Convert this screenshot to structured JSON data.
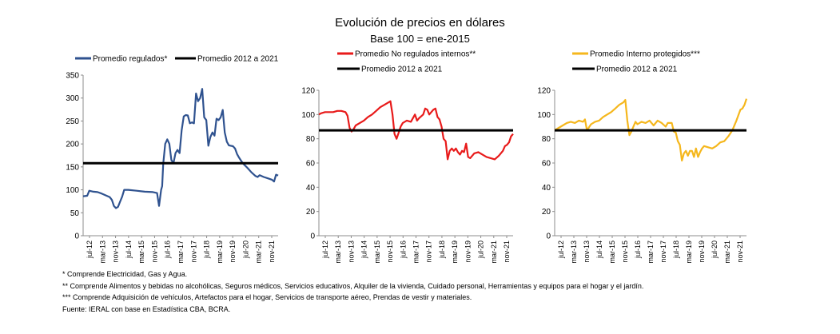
{
  "title": "Evolución de precios en dólares",
  "subtitle": "Base 100 = ene-2015",
  "colors": {
    "regulados": "#2f528f",
    "no_regulados": "#e81a1a",
    "protegidos": "#f5b71d",
    "promedio": "#000000"
  },
  "x_tick_labels": [
    "jul-12",
    "mar-13",
    "nov-13",
    "jul-14",
    "mar-15",
    "nov-15",
    "jul-16",
    "mar-17",
    "nov-17",
    "jul-18",
    "mar-19",
    "nov-19",
    "jul-20",
    "mar-21",
    "nov-21"
  ],
  "chart_data": [
    {
      "type": "line",
      "legend": [
        "Promedio regulados*",
        "Promedio 2012 a 2021"
      ],
      "yticks": [
        "350",
        "300",
        "250",
        "200",
        "150",
        "100",
        "50",
        "0"
      ],
      "ylim": [
        0,
        350
      ],
      "x": [
        "jul-12",
        "mar-13",
        "nov-13",
        "jul-14",
        "mar-15",
        "nov-15",
        "jul-16",
        "mar-17",
        "nov-17",
        "jul-18",
        "mar-19",
        "nov-19",
        "jul-20",
        "mar-21",
        "nov-21"
      ],
      "series": [
        {
          "name": "Promedio regulados*",
          "color": "#2f528f",
          "points": [
            [
              0,
              86
            ],
            [
              2,
              87
            ],
            [
              3,
              98
            ],
            [
              5,
              96
            ],
            [
              7,
              95
            ],
            [
              9,
              92
            ],
            [
              11,
              88
            ],
            [
              13,
              84
            ],
            [
              14,
              78
            ],
            [
              15,
              65
            ],
            [
              16,
              60
            ],
            [
              17,
              63
            ],
            [
              18,
              74
            ],
            [
              19,
              85
            ],
            [
              20,
              100
            ],
            [
              22,
              100
            ],
            [
              26,
              98
            ],
            [
              30,
              96
            ],
            [
              34,
              95
            ],
            [
              36,
              93
            ],
            [
              37,
              65
            ],
            [
              38,
              100
            ],
            [
              38.5,
              108
            ],
            [
              39,
              156
            ],
            [
              40,
              200
            ],
            [
              41,
              210
            ],
            [
              42,
              200
            ],
            [
              43,
              165
            ],
            [
              44,
              158
            ],
            [
              45,
              180
            ],
            [
              46,
              187
            ],
            [
              47,
              180
            ],
            [
              48,
              230
            ],
            [
              49,
              260
            ],
            [
              50,
              263
            ],
            [
              51,
              262
            ],
            [
              52,
              245
            ],
            [
              53,
              247
            ],
            [
              54,
              245
            ],
            [
              55,
              310
            ],
            [
              56,
              293
            ],
            [
              57,
              300
            ],
            [
              58,
              320
            ],
            [
              59,
              258
            ],
            [
              60,
              252
            ],
            [
              61,
              196
            ],
            [
              62,
              215
            ],
            [
              63,
              225
            ],
            [
              64,
              218
            ],
            [
              65,
              255
            ],
            [
              66,
              252
            ],
            [
              67,
              258
            ],
            [
              68,
              274
            ],
            [
              69,
              225
            ],
            [
              70,
              205
            ],
            [
              71,
              197
            ],
            [
              73,
              195
            ],
            [
              74,
              190
            ],
            [
              75,
              178
            ],
            [
              76,
              170
            ],
            [
              77,
              163
            ],
            [
              78,
              157
            ],
            [
              80,
              148
            ],
            [
              82,
              138
            ],
            [
              84,
              130
            ],
            [
              85,
              128
            ],
            [
              86,
              132
            ],
            [
              88,
              128
            ],
            [
              90,
              125
            ],
            [
              92,
              122
            ],
            [
              93,
              118
            ],
            [
              94,
              133
            ],
            [
              95,
              131
            ]
          ]
        },
        {
          "name": "Promedio 2012 a 2021",
          "color": "#000000",
          "points": [
            [
              0,
              158
            ],
            [
              95,
              158
            ]
          ]
        }
      ]
    },
    {
      "type": "line",
      "legend": [
        "Promedio No regulados internos**",
        "Promedio 2012 a 2021"
      ],
      "yticks": [
        "120",
        "100",
        "80",
        "60",
        "40",
        "20",
        "0"
      ],
      "ylim": [
        0,
        120
      ],
      "x": [
        "jul-12",
        "mar-13",
        "nov-13",
        "jul-14",
        "mar-15",
        "nov-15",
        "jul-16",
        "mar-17",
        "nov-17",
        "jul-18",
        "mar-19",
        "nov-19",
        "jul-20",
        "mar-21",
        "nov-21"
      ],
      "series": [
        {
          "name": "Promedio No regulados internos**",
          "color": "#e81a1a",
          "points": [
            [
              0,
              100
            ],
            [
              1,
              101
            ],
            [
              3,
              102
            ],
            [
              5,
              102
            ],
            [
              7,
              102
            ],
            [
              9,
              103
            ],
            [
              11,
              103
            ],
            [
              13,
              102
            ],
            [
              14,
              99
            ],
            [
              15,
              89
            ],
            [
              16,
              86
            ],
            [
              17,
              88
            ],
            [
              18,
              91
            ],
            [
              20,
              93
            ],
            [
              22,
              95
            ],
            [
              24,
              98
            ],
            [
              26,
              100
            ],
            [
              28,
              103
            ],
            [
              30,
              106
            ],
            [
              32,
              108
            ],
            [
              34,
              110
            ],
            [
              35,
              111
            ],
            [
              36,
              100
            ],
            [
              37,
              84
            ],
            [
              38,
              80
            ],
            [
              39,
              85
            ],
            [
              40,
              90
            ],
            [
              41,
              93
            ],
            [
              43,
              95
            ],
            [
              45,
              94
            ],
            [
              47,
              100
            ],
            [
              48,
              95
            ],
            [
              49,
              97
            ],
            [
              51,
              100
            ],
            [
              52,
              105
            ],
            [
              53,
              104
            ],
            [
              54,
              100
            ],
            [
              56,
              104
            ],
            [
              57,
              105
            ],
            [
              58,
              98
            ],
            [
              59,
              96
            ],
            [
              60,
              90
            ],
            [
              61,
              80
            ],
            [
              62,
              78
            ],
            [
              63,
              63
            ],
            [
              64,
              70
            ],
            [
              65,
              72
            ],
            [
              66,
              70
            ],
            [
              67,
              72
            ],
            [
              68,
              69
            ],
            [
              69,
              67
            ],
            [
              70,
              70
            ],
            [
              71,
              69
            ],
            [
              72,
              76
            ],
            [
              73,
              65
            ],
            [
              74,
              64
            ],
            [
              76,
              68
            ],
            [
              78,
              69
            ],
            [
              80,
              67
            ],
            [
              82,
              65
            ],
            [
              84,
              64
            ],
            [
              86,
              63
            ],
            [
              88,
              66
            ],
            [
              90,
              70
            ],
            [
              91,
              74
            ],
            [
              92,
              75
            ],
            [
              93,
              77
            ],
            [
              94,
              82
            ],
            [
              95,
              84
            ]
          ]
        },
        {
          "name": "Promedio 2012 a 2021",
          "color": "#000000",
          "points": [
            [
              0,
              87
            ],
            [
              95,
              87
            ]
          ]
        }
      ]
    },
    {
      "type": "line",
      "legend": [
        "Promedio Interno protegidos***",
        "Promedio 2012 a 2021"
      ],
      "yticks": [
        "120",
        "100",
        "80",
        "60",
        "40",
        "20",
        "0"
      ],
      "ylim": [
        0,
        120
      ],
      "x": [
        "jul-12",
        "mar-13",
        "nov-13",
        "jul-14",
        "mar-15",
        "nov-15",
        "jul-16",
        "mar-17",
        "nov-17",
        "jul-18",
        "mar-19",
        "nov-19",
        "jul-20",
        "mar-21",
        "nov-21"
      ],
      "series": [
        {
          "name": "Promedio Interno protegidos***",
          "color": "#f5b71d",
          "points": [
            [
              0,
              87
            ],
            [
              2,
              89
            ],
            [
              4,
              91
            ],
            [
              6,
              93
            ],
            [
              8,
              94
            ],
            [
              10,
              93
            ],
            [
              12,
              95
            ],
            [
              14,
              94
            ],
            [
              15,
              96
            ],
            [
              16,
              87
            ],
            [
              18,
              92
            ],
            [
              20,
              94
            ],
            [
              22,
              95
            ],
            [
              24,
              98
            ],
            [
              26,
              100
            ],
            [
              28,
              102
            ],
            [
              30,
              105
            ],
            [
              32,
              108
            ],
            [
              34,
              110
            ],
            [
              35,
              112
            ],
            [
              36,
              95
            ],
            [
              37,
              83
            ],
            [
              38,
              86
            ],
            [
              39,
              90
            ],
            [
              40,
              94
            ],
            [
              41,
              92
            ],
            [
              43,
              94
            ],
            [
              45,
              93
            ],
            [
              47,
              95
            ],
            [
              49,
              91
            ],
            [
              51,
              95
            ],
            [
              53,
              93
            ],
            [
              55,
              90
            ],
            [
              56,
              93
            ],
            [
              58,
              93
            ],
            [
              59,
              86
            ],
            [
              60,
              85
            ],
            [
              61,
              78
            ],
            [
              62,
              75
            ],
            [
              63,
              62
            ],
            [
              64,
              68
            ],
            [
              65,
              70
            ],
            [
              66,
              66
            ],
            [
              67,
              70
            ],
            [
              68,
              70
            ],
            [
              69,
              65
            ],
            [
              70,
              72
            ],
            [
              71,
              65
            ],
            [
              72,
              69
            ],
            [
              73,
              72
            ],
            [
              74,
              74
            ],
            [
              76,
              73
            ],
            [
              78,
              72
            ],
            [
              80,
              74
            ],
            [
              82,
              77
            ],
            [
              84,
              78
            ],
            [
              86,
              82
            ],
            [
              88,
              87
            ],
            [
              90,
              95
            ],
            [
              92,
              104
            ],
            [
              93,
              105
            ],
            [
              94,
              108
            ],
            [
              95,
              113
            ]
          ]
        },
        {
          "name": "Promedio 2012 a 2021",
          "color": "#000000",
          "points": [
            [
              0,
              87
            ],
            [
              95,
              87
            ]
          ]
        }
      ]
    }
  ],
  "notes": [
    "* Comprende Electricidad, Gas y Agua.",
    "** Comprende Alimentos y bebidas no alcohólicas, Seguros médicos, Servicios educativos, Alquiler de la vivienda, Cuidado personal, Herramientas y equipos para el hogar y el jardín.",
    "*** Comprende Adquisición de vehículos, Artefactos para el hogar, Servicios de transporte aéreo, Prendas de vestir y materiales.",
    "Fuente: IERAL con base en Estadística CBA, BCRA."
  ]
}
